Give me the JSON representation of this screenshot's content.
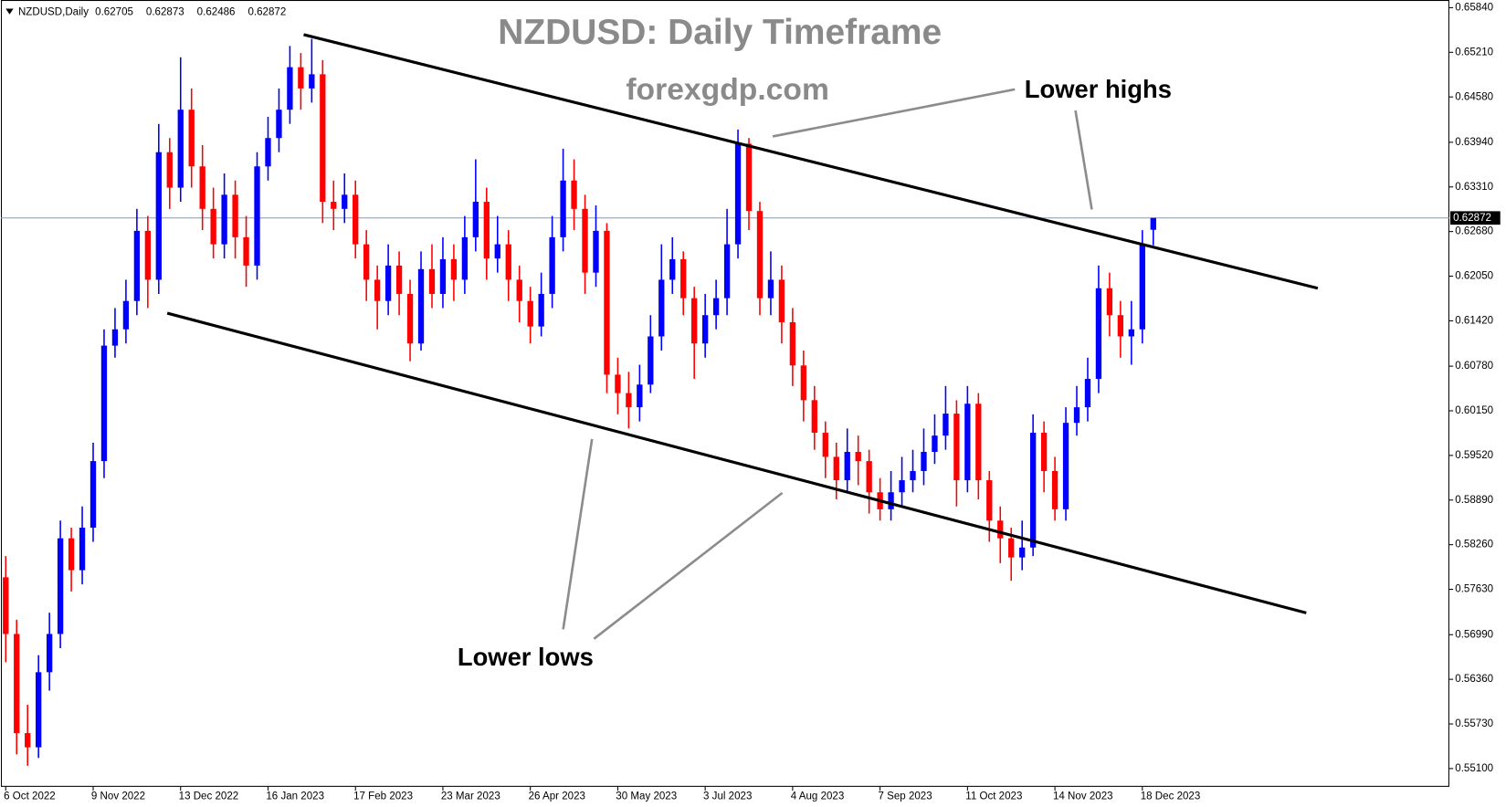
{
  "chart_data": {
    "type": "candlestick",
    "header": {
      "symbol": "NZDUSD,Daily",
      "ohlc": [
        "0.62705",
        "0.62873",
        "0.62486",
        "0.62872"
      ]
    },
    "title": "NZDUSD: Daily Timeframe",
    "subtitle": "forexgdp.com",
    "annotations": [
      "Lower highs",
      "Lower lows"
    ],
    "up_color": "#0000ff",
    "down_color": "#ff0000",
    "candles": [
      [
        0.578,
        0.581,
        0.566,
        0.57
      ],
      [
        0.57,
        0.572,
        0.553,
        0.556
      ],
      [
        0.556,
        0.56,
        0.5514,
        0.554
      ],
      [
        0.554,
        0.567,
        0.5525,
        0.5646
      ],
      [
        0.5646,
        0.573,
        0.562,
        0.57
      ],
      [
        0.57,
        0.586,
        0.568,
        0.5835
      ],
      [
        0.5835,
        0.585,
        0.576,
        0.579
      ],
      [
        0.579,
        0.588,
        0.577,
        0.585
      ],
      [
        0.585,
        0.597,
        0.583,
        0.5944
      ],
      [
        0.5944,
        0.613,
        0.592,
        0.6107
      ],
      [
        0.6107,
        0.616,
        0.609,
        0.613
      ],
      [
        0.613,
        0.62,
        0.611,
        0.617
      ],
      [
        0.617,
        0.63,
        0.615,
        0.6269
      ],
      [
        0.6269,
        0.629,
        0.616,
        0.62
      ],
      [
        0.62,
        0.642,
        0.618,
        0.638
      ],
      [
        0.638,
        0.64,
        0.63,
        0.633
      ],
      [
        0.633,
        0.6514,
        0.631,
        0.644
      ],
      [
        0.644,
        0.647,
        0.633,
        0.636
      ],
      [
        0.636,
        0.639,
        0.627,
        0.63
      ],
      [
        0.63,
        0.633,
        0.623,
        0.625
      ],
      [
        0.625,
        0.635,
        0.623,
        0.632
      ],
      [
        0.632,
        0.634,
        0.623,
        0.626
      ],
      [
        0.626,
        0.629,
        0.619,
        0.622
      ],
      [
        0.622,
        0.638,
        0.62,
        0.636
      ],
      [
        0.636,
        0.643,
        0.634,
        0.64
      ],
      [
        0.64,
        0.647,
        0.638,
        0.644
      ],
      [
        0.644,
        0.653,
        0.642,
        0.65
      ],
      [
        0.65,
        0.652,
        0.644,
        0.647
      ],
      [
        0.647,
        0.654,
        0.645,
        0.649
      ],
      [
        0.649,
        0.651,
        0.628,
        0.631
      ],
      [
        0.631,
        0.634,
        0.627,
        0.63
      ],
      [
        0.63,
        0.635,
        0.628,
        0.632
      ],
      [
        0.632,
        0.634,
        0.623,
        0.625
      ],
      [
        0.625,
        0.627,
        0.617,
        0.62
      ],
      [
        0.62,
        0.622,
        0.613,
        0.617
      ],
      [
        0.617,
        0.625,
        0.615,
        0.622
      ],
      [
        0.622,
        0.624,
        0.615,
        0.618
      ],
      [
        0.618,
        0.62,
        0.6085,
        0.611
      ],
      [
        0.611,
        0.624,
        0.61,
        0.6215
      ],
      [
        0.6215,
        0.625,
        0.616,
        0.618
      ],
      [
        0.618,
        0.626,
        0.616,
        0.6229
      ],
      [
        0.6229,
        0.625,
        0.617,
        0.62
      ],
      [
        0.62,
        0.629,
        0.618,
        0.626
      ],
      [
        0.626,
        0.637,
        0.624,
        0.631
      ],
      [
        0.631,
        0.633,
        0.62,
        0.623
      ],
      [
        0.623,
        0.629,
        0.621,
        0.625
      ],
      [
        0.625,
        0.627,
        0.617,
        0.62
      ],
      [
        0.62,
        0.622,
        0.614,
        0.617
      ],
      [
        0.617,
        0.619,
        0.611,
        0.6134
      ],
      [
        0.6134,
        0.621,
        0.612,
        0.618
      ],
      [
        0.618,
        0.629,
        0.616,
        0.626
      ],
      [
        0.626,
        0.6385,
        0.624,
        0.634
      ],
      [
        0.634,
        0.637,
        0.627,
        0.63
      ],
      [
        0.63,
        0.632,
        0.618,
        0.621
      ],
      [
        0.621,
        0.6305,
        0.619,
        0.6269
      ],
      [
        0.6269,
        0.628,
        0.604,
        0.6066
      ],
      [
        0.6066,
        0.609,
        0.601,
        0.604
      ],
      [
        0.604,
        0.607,
        0.599,
        0.602
      ],
      [
        0.602,
        0.608,
        0.6,
        0.6052
      ],
      [
        0.6052,
        0.615,
        0.604,
        0.612
      ],
      [
        0.612,
        0.625,
        0.61,
        0.62
      ],
      [
        0.62,
        0.626,
        0.618,
        0.6229
      ],
      [
        0.6229,
        0.624,
        0.615,
        0.6174
      ],
      [
        0.6174,
        0.619,
        0.606,
        0.611
      ],
      [
        0.611,
        0.618,
        0.609,
        0.615
      ],
      [
        0.615,
        0.62,
        0.613,
        0.6174
      ],
      [
        0.6174,
        0.63,
        0.615,
        0.625
      ],
      [
        0.625,
        0.6412,
        0.623,
        0.6392
      ],
      [
        0.6392,
        0.64,
        0.627,
        0.6297
      ],
      [
        0.6297,
        0.631,
        0.615,
        0.6174
      ],
      [
        0.6174,
        0.624,
        0.615,
        0.62
      ],
      [
        0.62,
        0.622,
        0.611,
        0.614
      ],
      [
        0.614,
        0.616,
        0.605,
        0.6079
      ],
      [
        0.6079,
        0.61,
        0.6,
        0.603
      ],
      [
        0.603,
        0.605,
        0.596,
        0.5984
      ],
      [
        0.5984,
        0.6,
        0.592,
        0.595
      ],
      [
        0.595,
        0.597,
        0.589,
        0.5917
      ],
      [
        0.5917,
        0.599,
        0.59,
        0.5957
      ],
      [
        0.5957,
        0.598,
        0.591,
        0.5944
      ],
      [
        0.5944,
        0.596,
        0.587,
        0.59
      ],
      [
        0.59,
        0.592,
        0.586,
        0.5876
      ],
      [
        0.5876,
        0.593,
        0.586,
        0.59
      ],
      [
        0.59,
        0.595,
        0.588,
        0.5917
      ],
      [
        0.5917,
        0.596,
        0.59,
        0.593
      ],
      [
        0.593,
        0.599,
        0.591,
        0.5957
      ],
      [
        0.5957,
        0.601,
        0.594,
        0.598
      ],
      [
        0.598,
        0.605,
        0.596,
        0.6011
      ],
      [
        0.6011,
        0.603,
        0.588,
        0.5917
      ],
      [
        0.5917,
        0.605,
        0.59,
        0.6025
      ],
      [
        0.6025,
        0.604,
        0.589,
        0.5917
      ],
      [
        0.5917,
        0.593,
        0.583,
        0.586
      ],
      [
        0.586,
        0.588,
        0.58,
        0.5835
      ],
      [
        0.5835,
        0.585,
        0.5775,
        0.5808
      ],
      [
        0.5808,
        0.586,
        0.579,
        0.5822
      ],
      [
        0.5822,
        0.601,
        0.581,
        0.5984
      ],
      [
        0.5984,
        0.6,
        0.59,
        0.593
      ],
      [
        0.593,
        0.595,
        0.586,
        0.5876
      ],
      [
        0.5876,
        0.602,
        0.586,
        0.5998
      ],
      [
        0.5998,
        0.605,
        0.598,
        0.602
      ],
      [
        0.602,
        0.609,
        0.6,
        0.606
      ],
      [
        0.606,
        0.622,
        0.604,
        0.6188
      ],
      [
        0.6188,
        0.621,
        0.612,
        0.615
      ],
      [
        0.615,
        0.617,
        0.609,
        0.612
      ],
      [
        0.612,
        0.617,
        0.608,
        0.613
      ],
      [
        0.613,
        0.627,
        0.611,
        0.625
      ],
      [
        0.62705,
        0.62873,
        0.62486,
        0.62872
      ]
    ],
    "xlim": [
      0,
      132
    ],
    "xticks": [
      {
        "value": 0,
        "label": "6 Oct 2022"
      },
      {
        "value": 8,
        "label": "9 Nov 2022"
      },
      {
        "value": 16,
        "label": "13 Dec 2022"
      },
      {
        "value": 24,
        "label": "16 Jan 2023"
      },
      {
        "value": 32,
        "label": "17 Feb 2023"
      },
      {
        "value": 40,
        "label": "23 Mar 2023"
      },
      {
        "value": 48,
        "label": "26 Apr 2023"
      },
      {
        "value": 56,
        "label": "30 May 2023"
      },
      {
        "value": 64,
        "label": "3 Jul 2023"
      },
      {
        "value": 72,
        "label": "4 Aug 2023"
      },
      {
        "value": 80,
        "label": "7 Sep 2023"
      },
      {
        "value": 88,
        "label": "11 Oct 2023"
      },
      {
        "value": 96,
        "label": "14 Nov 2023"
      },
      {
        "value": 104,
        "label": "18 Dec 2023"
      }
    ],
    "ylim": [
      0.551,
      0.6584
    ],
    "yticks": [
      {
        "value": 0.6584,
        "label": "0.65840"
      },
      {
        "value": 0.6521,
        "label": "0.65210"
      },
      {
        "value": 0.6458,
        "label": "0.64580"
      },
      {
        "value": 0.6394,
        "label": "0.63940"
      },
      {
        "value": 0.6331,
        "label": "0.63310"
      },
      {
        "value": 0.6268,
        "label": "0.62680"
      },
      {
        "value": 0.6205,
        "label": "0.62050"
      },
      {
        "value": 0.6142,
        "label": "0.61420"
      },
      {
        "value": 0.6078,
        "label": "0.60780"
      },
      {
        "value": 0.6015,
        "label": "0.60150"
      },
      {
        "value": 0.5952,
        "label": "0.59520"
      },
      {
        "value": 0.5889,
        "label": "0.58890"
      },
      {
        "value": 0.5826,
        "label": "0.58260"
      },
      {
        "value": 0.5763,
        "label": "0.57630"
      },
      {
        "value": 0.5699,
        "label": "0.56990"
      },
      {
        "value": 0.5636,
        "label": "0.56360"
      },
      {
        "value": 0.5573,
        "label": "0.55730"
      },
      {
        "value": 0.551,
        "label": "0.55100"
      }
    ],
    "current_price": {
      "value": 0.62872,
      "label": "0.62872"
    },
    "trendlines": [
      {
        "start": [
          27.26,
          0.6546
        ],
        "end": [
          120.05,
          0.6188
        ]
      },
      {
        "start": [
          14.78,
          0.61528
        ],
        "end": [
          119.0,
          0.57297
        ]
      }
    ]
  }
}
